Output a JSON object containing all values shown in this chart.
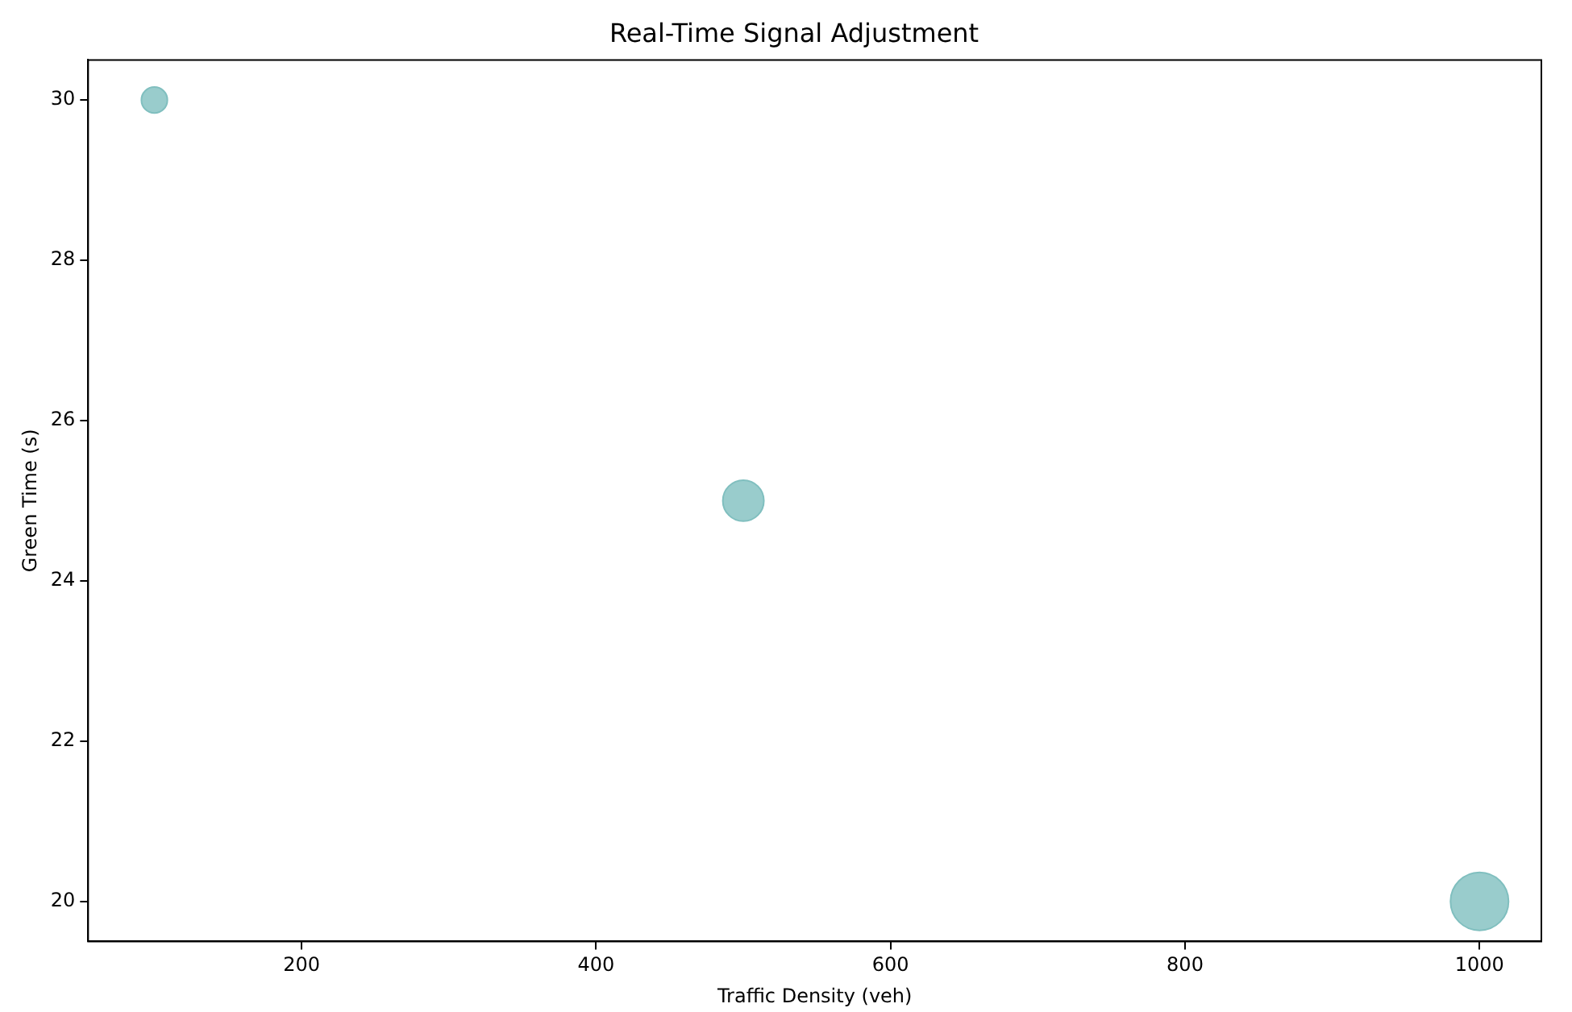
{
  "chart_data": {
    "type": "bubble",
    "title": "Real-Time Signal Adjustment",
    "xlabel": "Traffic Density (veh)",
    "ylabel": "Green Time (s)",
    "x": [
      100,
      500,
      1000
    ],
    "values": [
      30,
      25,
      20
    ],
    "sizes": [
      0.2,
      0.5,
      1
    ],
    "color": "#80bfbf",
    "xlim": [
      55,
      1042
    ],
    "xticks": [
      200,
      400,
      600,
      800,
      1000
    ],
    "ylim": [
      19.5,
      30.5
    ],
    "yticks": [
      20,
      22,
      24,
      26,
      28,
      30
    ],
    "grid": false,
    "legend": false
  }
}
